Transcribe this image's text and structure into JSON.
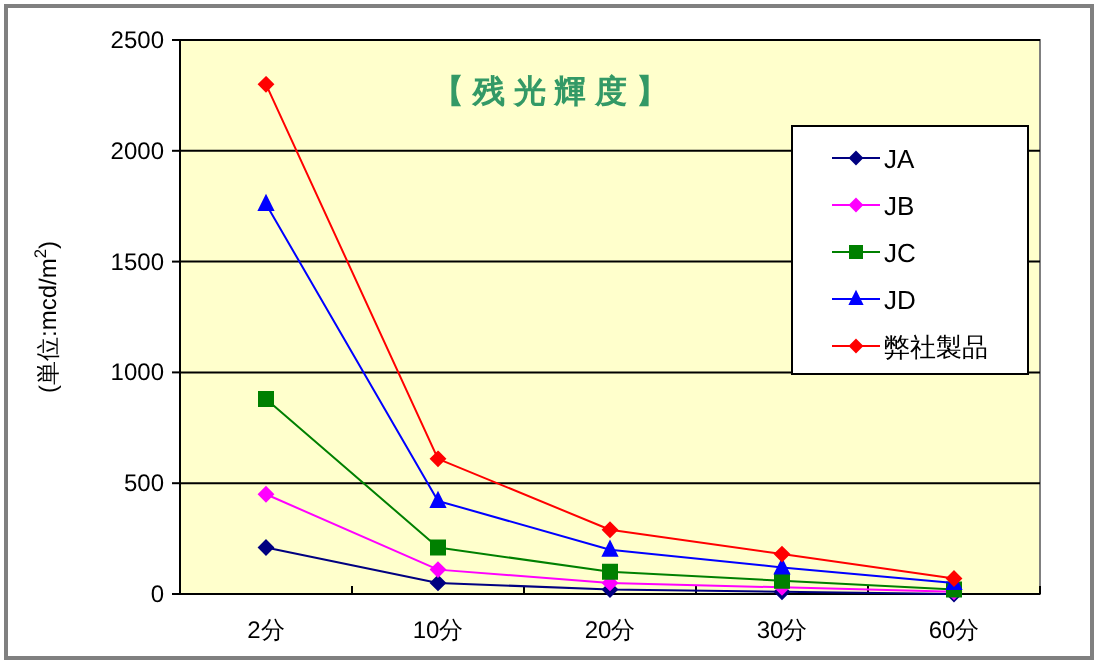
{
  "chart_data": {
    "type": "line",
    "title": "【 残 光 輝 度 】",
    "ylabel": "(単位:mcd/m$^{2}$)",
    "categories": [
      "2分",
      "10分",
      "20分",
      "30分",
      "60分"
    ],
    "series": [
      {
        "name": "JA",
        "color": "#000080",
        "marker": "diamond",
        "values": [
          210,
          50,
          20,
          10,
          0
        ]
      },
      {
        "name": "JB",
        "color": "#ff00ff",
        "marker": "diamond",
        "values": [
          450,
          110,
          50,
          30,
          10
        ]
      },
      {
        "name": "JC",
        "color": "#008000",
        "marker": "square",
        "values": [
          880,
          210,
          100,
          60,
          20
        ]
      },
      {
        "name": "JD",
        "color": "#0000ff",
        "marker": "triangle",
        "values": [
          1760,
          420,
          200,
          120,
          50
        ]
      },
      {
        "name": "弊社製品",
        "color": "#ff0000",
        "marker": "diamond",
        "values": [
          2300,
          610,
          290,
          180,
          70
        ]
      }
    ],
    "ylim": [
      0,
      2500
    ],
    "yticks": [
      0,
      500,
      1000,
      1500,
      2000,
      2500
    ],
    "grid": "y",
    "legend": "top right"
  }
}
